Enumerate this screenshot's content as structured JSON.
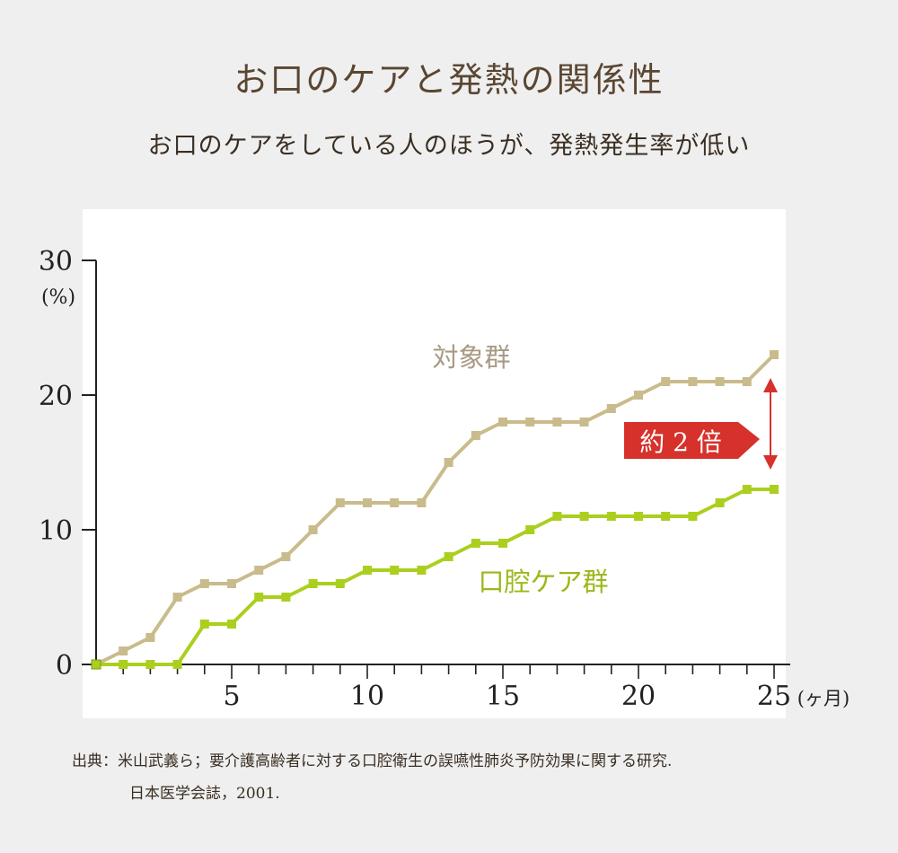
{
  "header": {
    "title": "お口のケアと発熱の関係性",
    "subtitle": "お口のケアをしている人のほうが、発熱発生率が低い"
  },
  "colors": {
    "control": "#c9bb8b",
    "oral_care": "#abcf1e",
    "callout": "#d6312b",
    "arrow": "#d6312b"
  },
  "chart_data": {
    "type": "line",
    "ylabel": "(%)",
    "xlabel": "(ヶ月)",
    "xlim": [
      0,
      25
    ],
    "ylim": [
      0,
      30
    ],
    "x_ticks": [
      5,
      10,
      15,
      20,
      25
    ],
    "y_ticks": [
      0,
      10,
      20,
      30
    ],
    "grid": false,
    "x": [
      0,
      1,
      2,
      3,
      4,
      5,
      6,
      7,
      8,
      9,
      10,
      11,
      12,
      13,
      14,
      15,
      16,
      17,
      18,
      19,
      20,
      21,
      22,
      23,
      24,
      25
    ],
    "series": [
      {
        "name": "対象群",
        "values": [
          0,
          1,
          2,
          5,
          6,
          6,
          7,
          8,
          10,
          12,
          12,
          12,
          12,
          15,
          17,
          18,
          18,
          18,
          18,
          19,
          20,
          21,
          21,
          21,
          21,
          23
        ]
      },
      {
        "name": "口腔ケア群",
        "values": [
          0,
          0,
          0,
          0,
          3,
          3,
          5,
          5,
          6,
          6,
          7,
          7,
          7,
          8,
          9,
          9,
          10,
          11,
          11,
          11,
          11,
          11,
          11,
          12,
          13,
          13
        ]
      }
    ],
    "annotation": "約 2 倍"
  },
  "source": {
    "line1": "出典：米山武義ら；要介護高齢者に対する口腔衛生の誤嚥性肺炎予防効果に関する研究.",
    "line2": "日本医学会誌，2001."
  }
}
